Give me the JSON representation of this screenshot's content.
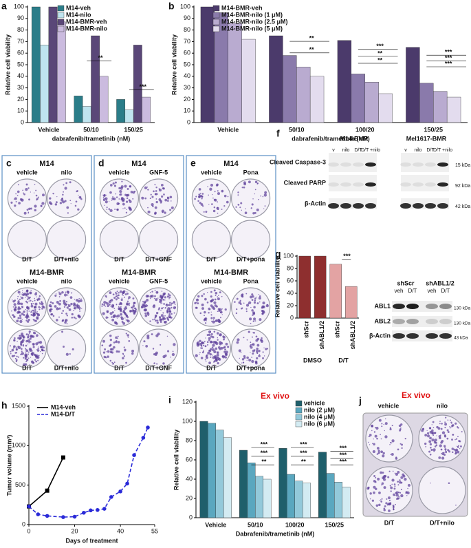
{
  "chart_data": [
    {
      "panel_label": "a",
      "type": "bar",
      "categories": [
        "Vehicle",
        "50/10",
        "150/25"
      ],
      "series": [
        {
          "name": "M14-veh",
          "color": "#2b7d89",
          "values": [
            100,
            23,
            20
          ]
        },
        {
          "name": "M14-nilo",
          "color": "#bfe4ef",
          "values": [
            67,
            14,
            11
          ]
        },
        {
          "name": "M14-BMR-veh",
          "color": "#5a4778",
          "values": [
            100,
            75,
            67
          ]
        },
        {
          "name": "M14-BMR-nilo",
          "color": "#cbbbdf",
          "values": [
            87,
            40,
            22
          ]
        }
      ],
      "ylim": [
        0,
        100
      ],
      "yticks": [
        0,
        10,
        20,
        30,
        40,
        50,
        60,
        70,
        80,
        90,
        100
      ],
      "y_label": "Relative cell viability",
      "x_label": "dabrafenib/trametinib (nM)",
      "legend": "upper-left",
      "annotations": [
        "**",
        "***"
      ]
    },
    {
      "panel_label": "b",
      "type": "bar",
      "categories": [
        "Vehicle",
        "50/10",
        "100/20",
        "150/25"
      ],
      "series": [
        {
          "name": "M14-BMR-veh",
          "color": "#4b3a6b",
          "values": [
            100,
            75,
            71,
            65
          ]
        },
        {
          "name": "M14-BMR-nilo (1 μM)",
          "color": "#8a7aab",
          "values": [
            95,
            58,
            42,
            34
          ]
        },
        {
          "name": "M14-BMR-nilo (2.5 μM)",
          "color": "#b9abd0",
          "values": [
            86,
            48,
            35,
            27
          ]
        },
        {
          "name": "M14-BMR-nilo (5 μM)",
          "color": "#e3dcee",
          "values": [
            72,
            40,
            25,
            22
          ]
        }
      ],
      "ylim": [
        0,
        100
      ],
      "yticks": [
        0,
        10,
        20,
        30,
        40,
        50,
        60,
        70,
        80,
        90,
        100
      ],
      "y_label": "Relative cell viability",
      "x_label": "dabrafenib/trametinib (nM)",
      "legend": "upper-left",
      "annotations": [
        "**",
        "**",
        "**",
        "***",
        "**",
        "***",
        "***",
        "***"
      ]
    },
    {
      "panel_label": "g",
      "type": "bar",
      "categories": [
        "shScr",
        "shABL1/2",
        "shScr",
        "shABL1/2"
      ],
      "values": [
        100,
        100,
        87,
        51
      ],
      "colors": [
        "#8e2f2f",
        "#8e2f2f",
        "#e3a3a3",
        "#e3a3a3"
      ],
      "groups": [
        "DMSO",
        "D/T"
      ],
      "ylim": [
        0,
        100
      ],
      "yticks": [
        0,
        20,
        40,
        60,
        80,
        100
      ],
      "y_label": "Relative cell viability",
      "annotations": [
        "***"
      ]
    },
    {
      "panel_label": "h",
      "type": "line",
      "series": [
        {
          "name": "M14-veh",
          "color": "#000000",
          "style": "solid",
          "x": [
            0,
            8,
            15
          ],
          "values": [
            230,
            430,
            850
          ]
        },
        {
          "name": "M14-D/T",
          "color": "#2a2ad8",
          "style": "dashed",
          "x": [
            0,
            4,
            8,
            15,
            20,
            24,
            27,
            30,
            33,
            36,
            40,
            43,
            46,
            50,
            52
          ],
          "values": [
            230,
            130,
            110,
            95,
            100,
            150,
            180,
            185,
            200,
            350,
            420,
            520,
            880,
            1100,
            1230
          ]
        }
      ],
      "xlim": [
        0,
        55
      ],
      "xticks": [
        0,
        20,
        40,
        55
      ],
      "ylim": [
        0,
        1500
      ],
      "yticks": [
        0,
        500,
        1000,
        1500
      ],
      "x_label": "Days of treatment",
      "y_label": "Tumor volume (mm³)",
      "legend": "upper-left"
    },
    {
      "panel_label": "i",
      "type": "bar",
      "title": "Ex vivo",
      "categories": [
        "Vehicle",
        "50/10",
        "100/20",
        "150/25"
      ],
      "series": [
        {
          "name": "vehicle",
          "color": "#1f5f6b",
          "values": [
            100,
            70,
            72,
            68
          ]
        },
        {
          "name": "nilo (2 μM)",
          "color": "#5aa7bf",
          "values": [
            98,
            57,
            45,
            46
          ]
        },
        {
          "name": "nilo (4 μM)",
          "color": "#93c9da",
          "values": [
            91,
            43,
            38,
            37
          ]
        },
        {
          "name": "nilo (6 μM)",
          "color": "#d3ebf2",
          "values": [
            83,
            40,
            36,
            32
          ]
        }
      ],
      "ylim": [
        0,
        120
      ],
      "yticks": [
        0,
        20,
        40,
        60,
        80,
        100,
        120
      ],
      "y_label": "Relative cell viability",
      "x_label": "Dabrafenib/trametinib (nM)",
      "legend": "upper-right",
      "annotations": [
        "***",
        "***",
        "**",
        "***",
        "***",
        "**",
        "***",
        "***",
        "***"
      ]
    }
  ],
  "panels": {
    "c": {
      "label": "c",
      "top_title": "M14",
      "top_cols": [
        "vehicle",
        "nilo"
      ],
      "top_rows": [
        "D/T",
        "D/T+nilo"
      ],
      "bottom_title": "M14-BMR",
      "bottom_cols": [
        "vehicle",
        "nilo"
      ],
      "bottom_rows": [
        "D/T",
        "D/T+nilo"
      ]
    },
    "d": {
      "label": "d",
      "top_title": "M14",
      "top_cols": [
        "vehicle",
        "GNF-5"
      ],
      "top_rows": [
        "D/T",
        "D/T+GNF"
      ],
      "bottom_title": "M14-BMR",
      "bottom_cols": [
        "vehicle",
        "GNF-5"
      ],
      "bottom_rows": [
        "D/T",
        "D/T+GNF"
      ]
    },
    "e": {
      "label": "e",
      "top_title": "M14",
      "top_cols": [
        "vehicle",
        "Pona"
      ],
      "top_rows": [
        "D/T",
        "D/T+pona"
      ],
      "bottom_title": "M14-BMR",
      "bottom_cols": [
        "vehicle",
        "Pona"
      ],
      "bottom_rows": [
        "D/T",
        "D/T+pona"
      ]
    },
    "f": {
      "label": "f",
      "groups": [
        "M14-BMR",
        "Mel1617-BMR"
      ],
      "lanes": [
        "v",
        "nilo",
        "D/T",
        "D/T +nilo",
        "v",
        "nilo",
        "D/T",
        "D/T +nilo"
      ],
      "rows": [
        "Cleaved Caspase-3",
        "Cleaved PARP",
        "β-Actin"
      ],
      "sizes": [
        "15 kDa",
        "92 kDa",
        "42 kDa"
      ]
    },
    "g_blot": {
      "header": [
        "shScr",
        "shABL1/2"
      ],
      "lanes": [
        "veh",
        "D/T",
        "veh",
        "D/T"
      ],
      "rows": [
        "ABL1",
        "ABL2",
        "β-Actin"
      ],
      "sizes": [
        "130 kDa",
        "130 kDa",
        "43 kDa"
      ]
    },
    "j": {
      "label": "j",
      "title": "Ex vivo",
      "cols": [
        "vehicle",
        "nilo"
      ],
      "rows": [
        "D/T",
        "D/T+nilo"
      ]
    }
  }
}
